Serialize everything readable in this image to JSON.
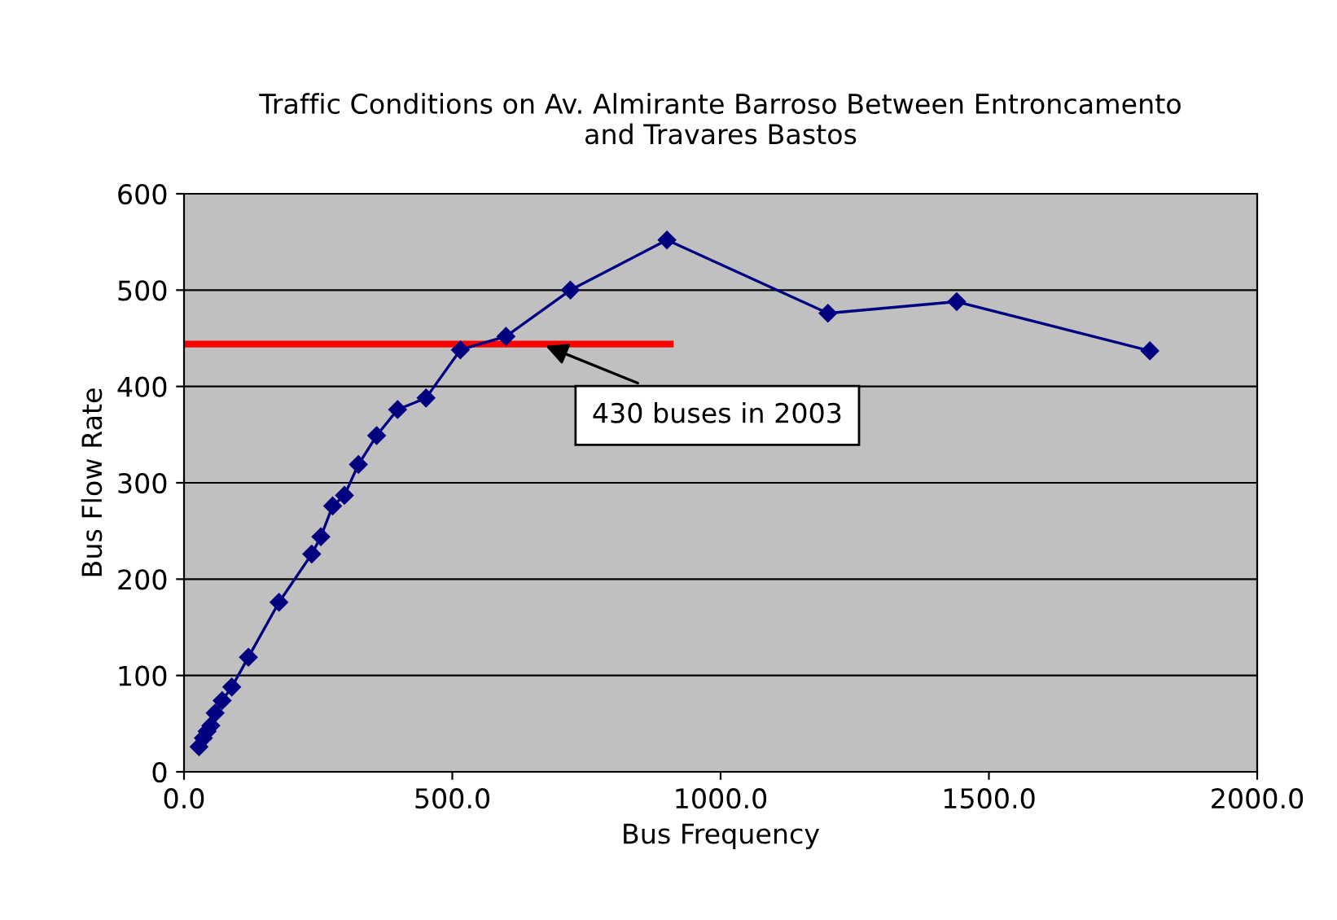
{
  "chart_data": {
    "type": "line",
    "title": "Traffic Conditions on Av. Almirante Barroso Between Entroncamento\nand Travares Bastos",
    "xlabel": "Bus Frequency",
    "ylabel": "Bus Flow Rate",
    "series": [
      {
        "color": "#000080",
        "marker": "diamond",
        "x": [
          28,
          36,
          43,
          50,
          58,
          71,
          89,
          120,
          177,
          238,
          255,
          277,
          299,
          325,
          359,
          398,
          451,
          515,
          600,
          720,
          900,
          1200,
          1440,
          1800
        ],
        "values": [
          26,
          35,
          42,
          48,
          61,
          74,
          88,
          119,
          176,
          226,
          244,
          276,
          287,
          319,
          349,
          376,
          388,
          438,
          452,
          500,
          552,
          476,
          488,
          437
        ]
      },
      {
        "color": "#ff0000",
        "marker": "none",
        "x": [
          0,
          906
        ],
        "values": [
          444,
          444
        ]
      }
    ],
    "annotations": [
      {
        "text": "430 buses in 2003",
        "x": 666,
        "y": 444
      }
    ],
    "xlim": [
      0,
      2000
    ],
    "xticks": [
      {
        "value": 0,
        "label": "0.0"
      },
      {
        "value": 500,
        "label": "500.0"
      },
      {
        "value": 1000,
        "label": "1000.0"
      },
      {
        "value": 1500,
        "label": "1500.0"
      },
      {
        "value": 2000,
        "label": "2000.0"
      }
    ],
    "ylim": [
      0,
      600
    ],
    "yticks": [
      0,
      100,
      200,
      300,
      400,
      500,
      600
    ],
    "grid": "y",
    "legend": false
  }
}
